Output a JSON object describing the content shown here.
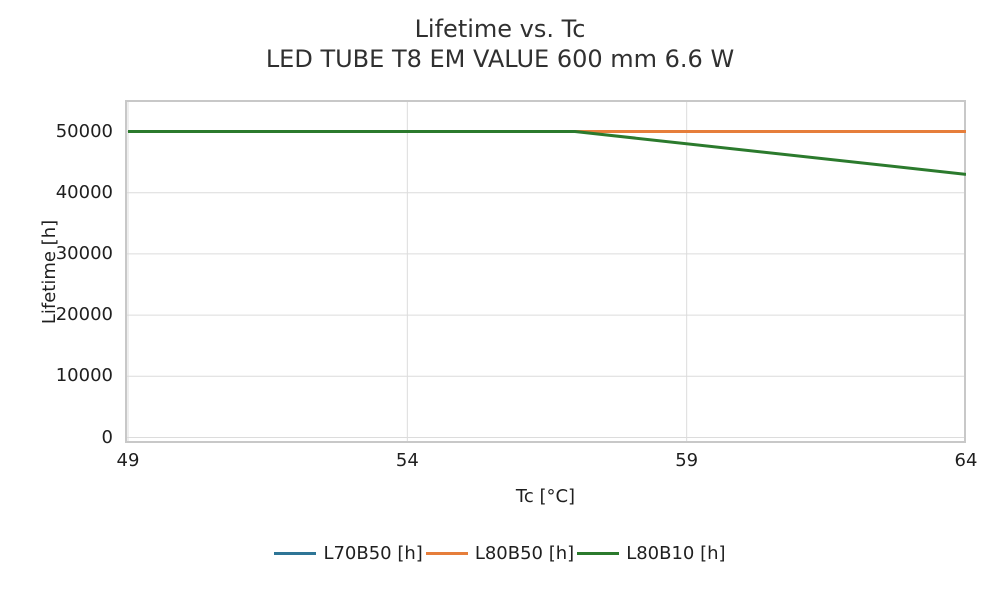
{
  "chart_data": {
    "type": "line",
    "title": "Lifetime vs. Tc",
    "subtitle": "LED TUBE T8 EM VALUE 600 mm 6.6 W",
    "xlabel": "Tc [°C]",
    "ylabel": "Lifetime [h]",
    "xlim": [
      49,
      64
    ],
    "ylim": [
      0,
      50000
    ],
    "xticks": [
      49,
      54,
      59,
      64
    ],
    "yticks": [
      0,
      10000,
      20000,
      30000,
      40000,
      50000
    ],
    "grid": true,
    "grid_color": "#dcdcdc",
    "spine_color": "#c8c8c8",
    "legend_position": "bottom",
    "series": [
      {
        "name": "L70B50 [h]",
        "color": "#2e7596",
        "x": [
          49,
          64
        ],
        "y": [
          50000,
          50000
        ]
      },
      {
        "name": "L80B50 [h]",
        "color": "#e67e3b",
        "x": [
          49,
          64
        ],
        "y": [
          50000,
          50000
        ]
      },
      {
        "name": "L80B10 [h]",
        "color": "#2b7a2d",
        "x": [
          49,
          57,
          64
        ],
        "y": [
          50000,
          50000,
          43000
        ]
      }
    ]
  }
}
